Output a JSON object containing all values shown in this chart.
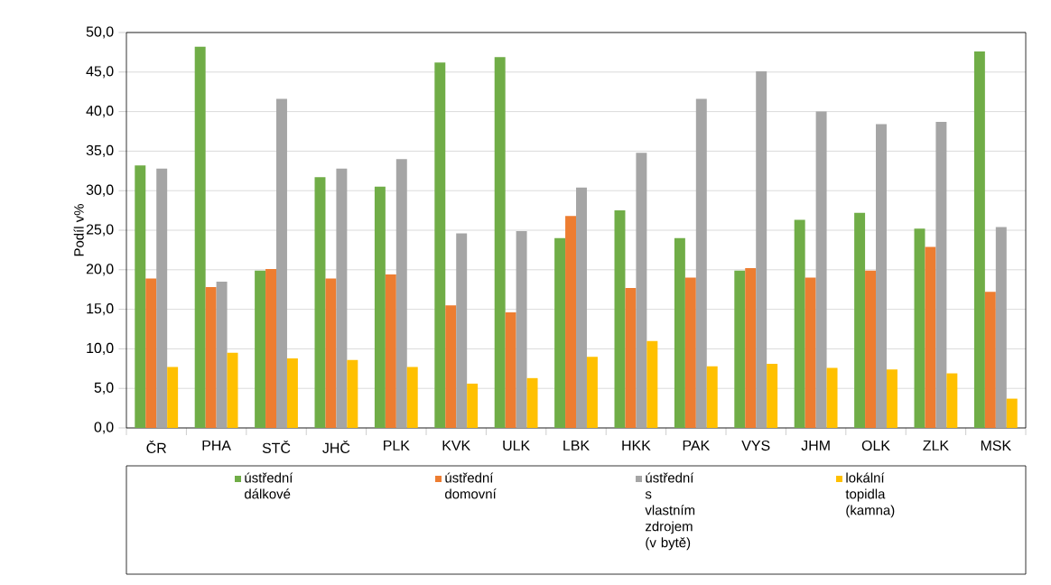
{
  "chart_data": {
    "type": "bar",
    "ylabel": "Podíl v%",
    "categories": [
      "ČR",
      "PHA",
      "STČ",
      "JHČ",
      "PLK",
      "KVK",
      "ULK",
      "LBK",
      "HKK",
      "PAK",
      "VYS",
      "JHM",
      "OLK",
      "ZLK",
      "MSK"
    ],
    "series": [
      {
        "name": "ústřední dálkové",
        "color": "#70ad47",
        "values": [
          33.2,
          48.2,
          19.9,
          31.7,
          30.5,
          46.2,
          46.9,
          24.0,
          27.5,
          24.0,
          19.9,
          26.3,
          27.2,
          25.2,
          47.6
        ]
      },
      {
        "name": "ústřední domovní",
        "color": "#ed7d31",
        "values": [
          18.9,
          17.8,
          20.1,
          18.9,
          19.4,
          15.5,
          14.6,
          26.8,
          17.7,
          19.0,
          20.2,
          19.0,
          19.9,
          22.9,
          17.2
        ]
      },
      {
        "name": "ústřední s vlastním zdrojem (v bytě)",
        "color": "#a5a5a5",
        "values": [
          32.8,
          18.5,
          41.6,
          32.8,
          34.0,
          24.6,
          24.9,
          30.4,
          34.8,
          41.6,
          45.1,
          40.0,
          38.4,
          38.7,
          25.4
        ]
      },
      {
        "name": "lokální topidla (kamna)",
        "color": "#ffc000",
        "values": [
          7.7,
          9.5,
          8.8,
          8.6,
          7.7,
          5.6,
          6.3,
          9.0,
          11.0,
          7.8,
          8.1,
          7.6,
          7.4,
          6.9,
          3.7
        ]
      }
    ],
    "ylim": [
      0,
      50
    ],
    "yticks": [
      {
        "value": 0,
        "label": "0,0"
      },
      {
        "value": 5,
        "label": "5,0"
      },
      {
        "value": 10,
        "label": "10,0"
      },
      {
        "value": 15,
        "label": "15,0"
      },
      {
        "value": 20,
        "label": "20,0"
      },
      {
        "value": 25,
        "label": "25,0"
      },
      {
        "value": 30,
        "label": "30,0"
      },
      {
        "value": 35,
        "label": "35,0"
      },
      {
        "value": 40,
        "label": "40,0"
      },
      {
        "value": 45,
        "label": "45,0"
      },
      {
        "value": 50,
        "label": "50,0"
      }
    ],
    "grid": "y",
    "legend": "bottom"
  }
}
